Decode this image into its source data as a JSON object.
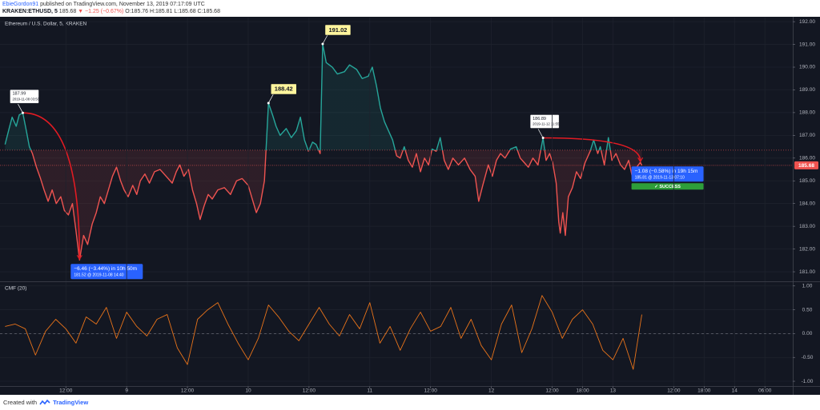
{
  "header": {
    "author": "EbieGordon91",
    "published": "published on TradingView.com, November 13, 2019 07:17:09 UTC",
    "symbol": "KRAKEN:ETHUSD, 5",
    "last": "185.68",
    "change": "▼ −1.25 (−0.67%)",
    "ohlc": "O:185.76 H:185.81 L:185.68 C:185.68"
  },
  "footer": {
    "text": "Created with",
    "brand": "TradingView"
  },
  "chart_data": [
    {
      "type": "line",
      "title": "Ethereum / U.S. Dollar, 5, KRAKEN",
      "x": [
        0,
        0.8,
        1.4,
        2.2,
        2.8,
        3.5,
        4.2,
        4.8,
        5.4,
        6.2,
        7,
        7.7,
        8.5,
        9.3,
        10.1,
        11,
        11.7,
        12.5,
        13.3,
        14,
        14.7,
        15.5,
        16.3,
        17.2,
        18,
        18.8,
        19.6,
        20.4,
        21.2,
        22,
        22.8,
        23.5,
        24.3,
        25.2,
        26,
        26.7,
        27.6,
        28.5,
        29.5,
        30.6,
        31.8,
        33,
        33.8,
        34.5,
        35.3,
        36.2,
        37,
        37.8,
        38.5,
        39.3,
        40.1,
        40.9,
        42,
        43.3,
        44.5,
        45.7,
        46.8,
        48,
        48.8,
        49.6,
        50.4,
        51.2,
        52,
        52.8,
        53.5,
        54.3,
        55.5,
        56.5,
        57.5,
        58.3,
        59.1,
        59.9,
        60.7,
        61.4,
        62.2,
        62.7,
        63.4,
        64.6,
        65.6,
        67,
        68,
        69.4,
        70.5,
        71.7,
        72.5,
        73.3,
        74.1,
        74.9,
        75.7,
        76.5,
        77.3,
        78,
        78.8,
        79.6,
        80.4,
        81.2,
        82,
        82.8,
        83.6,
        84.3,
        85.1,
        85.9,
        86.7,
        87.5,
        88.4,
        89.5,
        90.7,
        91.8,
        92.8,
        93.5,
        94.3,
        95.4,
        96.2,
        97,
        97.8,
        98.7,
        99.8,
        100.9,
        101.7,
        102.5,
        103.3,
        104.2,
        105.2,
        106.2,
        106.8,
        107.5,
        108.1,
        108.8,
        109.3,
        109.6,
        110.1,
        110.6,
        111.2,
        112,
        112.8,
        113.6,
        114.5,
        115.5,
        116.2,
        117,
        117.5,
        118.3,
        119.1,
        119.8,
        120.6,
        121.5,
        122.3,
        123.1,
        123.9,
        124.7,
        125.4,
        125.7
      ],
      "values": [
        186.6,
        187.3,
        187.8,
        187.4,
        187.9,
        187.99,
        187.2,
        186.5,
        186.2,
        185.6,
        185.1,
        184.6,
        184.1,
        184.6,
        184.0,
        184.3,
        183.7,
        183.5,
        184.0,
        182.8,
        181.52,
        182.6,
        182.2,
        183.1,
        183.6,
        184.3,
        184.0,
        184.6,
        185.2,
        185.6,
        185.0,
        184.6,
        184.3,
        184.8,
        184.4,
        185.0,
        185.3,
        184.9,
        185.4,
        185.5,
        185.2,
        184.9,
        185.4,
        185.7,
        185.2,
        185.5,
        184.6,
        184.0,
        183.3,
        183.9,
        184.4,
        184.2,
        184.6,
        184.7,
        184.4,
        185.0,
        185.1,
        184.8,
        184.2,
        183.6,
        184.0,
        185.0,
        188.42,
        187.9,
        187.4,
        187.0,
        187.3,
        186.9,
        187.2,
        187.8,
        186.8,
        186.3,
        186.7,
        186.6,
        186.2,
        191.02,
        190.2,
        190.0,
        189.7,
        189.8,
        190.1,
        189.9,
        189.5,
        189.6,
        190.0,
        189.2,
        188.2,
        187.6,
        187.2,
        186.8,
        186.1,
        186.0,
        186.5,
        185.9,
        185.6,
        186.2,
        185.4,
        186.0,
        185.7,
        186.4,
        186.3,
        186.9,
        185.9,
        185.5,
        186.0,
        185.7,
        186.0,
        185.5,
        185.2,
        184.1,
        184.8,
        185.7,
        185.2,
        185.9,
        186.2,
        186.0,
        186.4,
        186.5,
        186.0,
        185.8,
        185.6,
        186.0,
        185.7,
        186.89,
        185.9,
        186.2,
        185.8,
        184.9,
        183.2,
        182.7,
        183.6,
        182.6,
        184.3,
        184.7,
        185.4,
        185.1,
        185.8,
        186.3,
        186.8,
        186.2,
        186.5,
        185.7,
        186.9,
        185.9,
        186.2,
        185.7,
        185.5,
        185.9,
        185.1,
        185.6,
        185.81,
        185.68
      ],
      "color_above": "#26a69a",
      "color_below": "#ef5350",
      "baseline": 186.35,
      "xlim": [
        -1,
        155.5
      ],
      "ylim": [
        180.58,
        192.18
      ],
      "yticks": [
        {
          "value": 181,
          "label": "181.00"
        },
        {
          "value": 182,
          "label": "182.00"
        },
        {
          "value": 183,
          "label": "183.00"
        },
        {
          "value": 184,
          "label": "184.00"
        },
        {
          "value": 185,
          "label": "185.00"
        },
        {
          "value": 186,
          "label": "186.00"
        },
        {
          "value": 187,
          "label": "187.00"
        },
        {
          "value": 188,
          "label": "188.00"
        },
        {
          "value": 189,
          "label": "189.00"
        },
        {
          "value": 190,
          "label": "190.00"
        },
        {
          "value": 191,
          "label": "191.00"
        },
        {
          "value": 192,
          "label": "192.00"
        }
      ],
      "grid": true,
      "last_price": {
        "value": 185.68,
        "label": "185.68"
      },
      "price_labels": [
        {
          "x": 3.5,
          "y": 187.99,
          "label": "187.99",
          "date": "2019-11-08 03:50"
        },
        {
          "x": 52,
          "y": 188.42,
          "label": "188.42"
        },
        {
          "x": 62.7,
          "y": 191.02,
          "label": "191.02"
        },
        {
          "x": 106.2,
          "y": 186.89,
          "label": "186.89",
          "date": "2019-11-12 11:55"
        }
      ],
      "measurements": [
        {
          "from": [
            3.5,
            187.99
          ],
          "to": [
            14.7,
            181.52
          ],
          "text": "−6.46 (−3.44%) in 10h 50m",
          "detail": "181.52 @ 2019-11-08  14:40"
        },
        {
          "from": [
            106.2,
            186.89
          ],
          "to": [
            125.4,
            185.81
          ],
          "text": "−1.08 (−0.58%) in 19h 15m",
          "detail": "185.81 @ 2019-11-13  07:10",
          "status": "✓ SUCCESS"
        }
      ]
    },
    {
      "type": "line",
      "title": "CMF (20)",
      "x": [
        0,
        2,
        4,
        6,
        8,
        10,
        12,
        14,
        16,
        18,
        20,
        22,
        24,
        26,
        28,
        30,
        32,
        34,
        36,
        38,
        40,
        42,
        44,
        46,
        48,
        50,
        52,
        54,
        56,
        58,
        60,
        62,
        64,
        66,
        68,
        70,
        72,
        74,
        76,
        78,
        80,
        82,
        84,
        86,
        88,
        90,
        92,
        94,
        96,
        98,
        100,
        102,
        104,
        106,
        108,
        110,
        112,
        114,
        116,
        118,
        120,
        122,
        124,
        125.7
      ],
      "values": [
        0.15,
        0.2,
        0.1,
        -0.45,
        0.05,
        0.3,
        0.1,
        -0.2,
        0.35,
        0.2,
        0.55,
        -0.1,
        0.45,
        0.15,
        -0.05,
        0.3,
        0.4,
        -0.3,
        -0.65,
        0.3,
        0.5,
        0.65,
        0.2,
        -0.2,
        -0.55,
        -0.1,
        0.6,
        0.35,
        0.05,
        -0.15,
        0.2,
        0.55,
        0.2,
        -0.05,
        0.4,
        0.1,
        0.65,
        -0.2,
        0.15,
        -0.35,
        0.1,
        0.45,
        0.05,
        0.15,
        0.55,
        -0.1,
        0.3,
        -0.25,
        -0.55,
        0.2,
        0.6,
        -0.4,
        0.1,
        0.8,
        0.45,
        -0.1,
        0.3,
        0.5,
        0.2,
        -0.35,
        -0.55,
        -0.1,
        -0.75,
        0.4
      ],
      "color": "#e8731a",
      "baseline": 0,
      "xlim": [
        -1,
        155.5
      ],
      "ylim": [
        -1.1,
        1.08
      ],
      "yticks": [
        {
          "value": 1,
          "label": "1.00"
        },
        {
          "value": 0.5,
          "label": "0.50"
        },
        {
          "value": 0,
          "label": "0.00"
        },
        {
          "value": -0.5,
          "label": "-0.50"
        },
        {
          "value": -1,
          "label": "-1.00"
        }
      ],
      "xticks": [
        {
          "value": 12,
          "label": "12:00"
        },
        {
          "value": 24,
          "label": "9"
        },
        {
          "value": 36,
          "label": "12:00"
        },
        {
          "value": 48,
          "label": "10"
        },
        {
          "value": 60,
          "label": "12:00"
        },
        {
          "value": 72,
          "label": "11"
        },
        {
          "value": 84,
          "label": "12:00"
        },
        {
          "value": 96,
          "label": "12"
        },
        {
          "value": 108,
          "label": "12:00"
        },
        {
          "value": 114,
          "label": "18:00"
        },
        {
          "value": 120,
          "label": "13"
        },
        {
          "value": 132,
          "label": "12:00"
        },
        {
          "value": 138,
          "label": "18:00"
        },
        {
          "value": 144,
          "label": "14"
        },
        {
          "value": 150,
          "label": "06:00"
        }
      ],
      "grid": true
    }
  ]
}
